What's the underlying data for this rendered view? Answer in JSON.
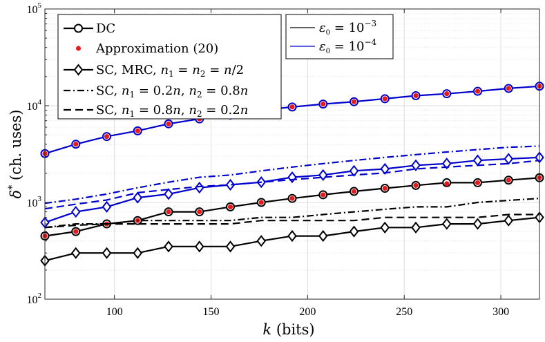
{
  "chart_data": {
    "type": "line",
    "title": "",
    "xlabel": "k (bits)",
    "ylabel": "δ* (ch. uses)",
    "xlim": [
      64,
      320
    ],
    "ylim": [
      100,
      100000
    ],
    "yscale": "log",
    "grid": true,
    "x_ticks": [
      "100",
      "150",
      "200",
      "250",
      "300"
    ],
    "y_ticks": [
      "10^2",
      "10^3",
      "10^4",
      "10^5"
    ],
    "x": [
      64,
      80,
      96,
      112,
      128,
      144,
      160,
      176,
      192,
      208,
      224,
      240,
      256,
      272,
      288,
      304,
      320
    ],
    "legend_main": {
      "position": "top-left",
      "entries": [
        "DC",
        "Approximation (20)",
        "SC, MRC, n1 = n2 = n/2",
        "SC, n1 = 0.2n, n2 = 0.8n",
        "SC, n1 = 0.8n, n2 = 0.2n"
      ]
    },
    "legend_eps": {
      "position": "top-center",
      "entries": [
        "ε0 = 10^-3",
        "ε0 = 10^-4"
      ]
    },
    "series": [
      {
        "name": "DC, ε0 = 10^-4",
        "color": "#0000cc",
        "style": "solid-circle",
        "values": [
          3200,
          4000,
          4800,
          5500,
          6500,
          7300,
          8000,
          9000,
          9700,
          10400,
          11000,
          11800,
          12700,
          13300,
          14100,
          15100,
          15900
        ]
      },
      {
        "name": "Approximation (20), ε0 = 10^-4",
        "color": "#e41a1c",
        "style": "dots",
        "values": [
          3200,
          4000,
          4800,
          5500,
          6500,
          7300,
          8000,
          9000,
          9700,
          10400,
          11000,
          11800,
          12700,
          13300,
          14100,
          15100,
          15900
        ]
      },
      {
        "name": "SC MRC, ε0 = 10^-4",
        "color": "#0000cc",
        "style": "solid-diamond",
        "values": [
          620,
          800,
          900,
          1120,
          1220,
          1420,
          1520,
          1620,
          1820,
          1920,
          2120,
          2220,
          2420,
          2520,
          2720,
          2820,
          2920
        ]
      },
      {
        "name": "SC 0.2n/0.8n, ε0 = 10^-4",
        "color": "#0000cc",
        "style": "dashdot",
        "values": [
          980,
          1080,
          1220,
          1420,
          1620,
          1820,
          1920,
          2120,
          2320,
          2520,
          2720,
          2920,
          3120,
          3320,
          3520,
          3720,
          3820
        ]
      },
      {
        "name": "SC 0.8n/0.2n, ε0 = 10^-4",
        "color": "#0000cc",
        "style": "dashed",
        "values": [
          860,
          960,
          1060,
          1260,
          1360,
          1460,
          1520,
          1620,
          1720,
          1820,
          1920,
          2020,
          2220,
          2320,
          2420,
          2520,
          2720
        ]
      },
      {
        "name": "DC, ε0 = 10^-3",
        "color": "#000000",
        "style": "solid-circle",
        "values": [
          450,
          500,
          600,
          650,
          800,
          800,
          900,
          1000,
          1100,
          1200,
          1300,
          1400,
          1500,
          1600,
          1600,
          1700,
          1800
        ]
      },
      {
        "name": "Approximation (20), ε0 = 10^-3",
        "color": "#e41a1c",
        "style": "dots",
        "values": [
          450,
          500,
          600,
          650,
          800,
          800,
          900,
          1000,
          1100,
          1200,
          1300,
          1400,
          1500,
          1560,
          1600,
          1700,
          1800
        ]
      },
      {
        "name": "SC MRC, ε0 = 10^-3",
        "color": "#000000",
        "style": "solid-diamond",
        "values": [
          250,
          300,
          300,
          300,
          350,
          350,
          350,
          400,
          450,
          450,
          500,
          550,
          550,
          600,
          600,
          650,
          700
        ]
      },
      {
        "name": "SC 0.2n/0.8n, ε0 = 10^-3",
        "color": "#000000",
        "style": "dashdot",
        "values": [
          550,
          600,
          600,
          650,
          650,
          650,
          650,
          700,
          700,
          750,
          800,
          850,
          900,
          900,
          1000,
          1050,
          1100
        ]
      },
      {
        "name": "SC 0.8n/0.2n, ε0 = 10^-3",
        "color": "#000000",
        "style": "dashed",
        "values": [
          550,
          580,
          600,
          600,
          600,
          600,
          600,
          650,
          650,
          650,
          650,
          700,
          700,
          700,
          700,
          750,
          750
        ]
      }
    ]
  }
}
